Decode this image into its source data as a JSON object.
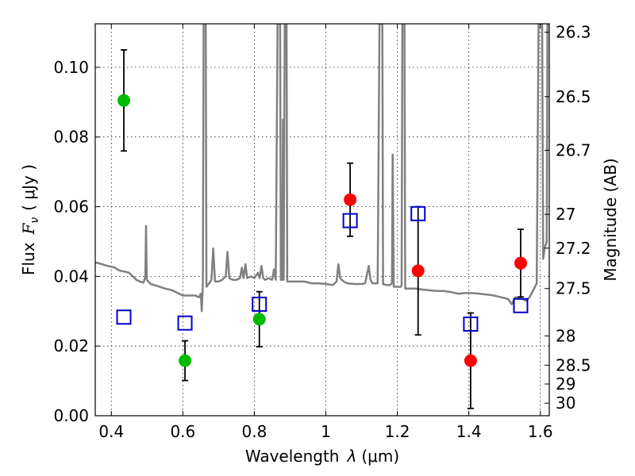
{
  "chart_data": {
    "type": "scatter",
    "title": "",
    "xlabel": "Wavelength",
    "xlabel_symbol": "λ",
    "xlabel_unit": "(μm)",
    "ylabel_parts": [
      "Flux",
      "F",
      "ν",
      "( μJy )"
    ],
    "y2label": "Magnitude (AB)",
    "xlim": [
      0.355,
      1.625
    ],
    "ylim": [
      0.0,
      0.1125
    ],
    "x_ticks": [
      0.4,
      0.6,
      0.8,
      1.0,
      1.2,
      1.4,
      1.6
    ],
    "x_tick_labels": [
      "0.4",
      "0.6",
      "0.8",
      "1",
      "1.2",
      "1.4",
      "1.6"
    ],
    "y_ticks": [
      0.0,
      0.02,
      0.04,
      0.06,
      0.08,
      0.1
    ],
    "y_tick_labels": [
      "0.00",
      "0.02",
      "0.04",
      "0.06",
      "0.08",
      "0.10"
    ],
    "y2_ticks": [
      {
        "label": "26.3",
        "flux": 0.1101
      },
      {
        "label": "26.5",
        "flux": 0.0916
      },
      {
        "label": "26.7",
        "flux": 0.0762
      },
      {
        "label": "27",
        "flux": 0.0578
      },
      {
        "label": "27.2",
        "flux": 0.0481
      },
      {
        "label": "27.5",
        "flux": 0.0365
      },
      {
        "label": "28",
        "flux": 0.0229
      },
      {
        "label": "28.5",
        "flux": 0.0145
      },
      {
        "label": "29",
        "flux": 0.0091
      },
      {
        "label": "30",
        "flux": 0.0036
      }
    ],
    "grid": true,
    "series": [
      {
        "kind": "line",
        "color": "#808080",
        "points": [
          [
            0.355,
            0.044
          ],
          [
            0.37,
            0.0436
          ],
          [
            0.385,
            0.0431
          ],
          [
            0.4,
            0.0428
          ],
          [
            0.41,
            0.0425
          ],
          [
            0.42,
            0.0418
          ],
          [
            0.43,
            0.0415
          ],
          [
            0.44,
            0.0413
          ],
          [
            0.45,
            0.041
          ],
          [
            0.46,
            0.04
          ],
          [
            0.47,
            0.039
          ],
          [
            0.48,
            0.0385
          ],
          [
            0.49,
            0.0382
          ],
          [
            0.495,
            0.04
          ],
          [
            0.497,
            0.0545
          ],
          [
            0.499,
            0.039
          ],
          [
            0.51,
            0.0378
          ],
          [
            0.53,
            0.0372
          ],
          [
            0.55,
            0.0365
          ],
          [
            0.57,
            0.036
          ],
          [
            0.59,
            0.035
          ],
          [
            0.6,
            0.0345
          ],
          [
            0.61,
            0.0345
          ],
          [
            0.62,
            0.0345
          ],
          [
            0.635,
            0.0345
          ],
          [
            0.645,
            0.034
          ],
          [
            0.65,
            0.035
          ],
          [
            0.653,
            0.03
          ],
          [
            0.656,
            0.038
          ],
          [
            0.658,
            0.1125
          ],
          [
            0.664,
            0.1125
          ],
          [
            0.666,
            0.037
          ],
          [
            0.67,
            0.0375
          ],
          [
            0.68,
            0.039
          ],
          [
            0.685,
            0.048
          ],
          [
            0.69,
            0.0385
          ],
          [
            0.7,
            0.0385
          ],
          [
            0.71,
            0.039
          ],
          [
            0.72,
            0.04
          ],
          [
            0.725,
            0.047
          ],
          [
            0.73,
            0.0395
          ],
          [
            0.74,
            0.039
          ],
          [
            0.75,
            0.039
          ],
          [
            0.76,
            0.0395
          ],
          [
            0.765,
            0.0425
          ],
          [
            0.77,
            0.0395
          ],
          [
            0.775,
            0.0435
          ],
          [
            0.78,
            0.0395
          ],
          [
            0.79,
            0.04
          ],
          [
            0.8,
            0.0395
          ],
          [
            0.81,
            0.041
          ],
          [
            0.815,
            0.0395
          ],
          [
            0.82,
            0.043
          ],
          [
            0.825,
            0.0395
          ],
          [
            0.83,
            0.039
          ],
          [
            0.84,
            0.0395
          ],
          [
            0.85,
            0.039
          ],
          [
            0.855,
            0.042
          ],
          [
            0.86,
            0.039
          ],
          [
            0.865,
            0.1125
          ],
          [
            0.872,
            0.1125
          ],
          [
            0.874,
            0.039
          ],
          [
            0.878,
            0.039
          ],
          [
            0.88,
            0.085
          ],
          [
            0.882,
            0.039
          ],
          [
            0.885,
            0.1125
          ],
          [
            0.89,
            0.1125
          ],
          [
            0.892,
            0.0385
          ],
          [
            0.9,
            0.0385
          ],
          [
            0.92,
            0.0385
          ],
          [
            0.94,
            0.0385
          ],
          [
            0.96,
            0.038
          ],
          [
            0.98,
            0.038
          ],
          [
            1.0,
            0.0378
          ],
          [
            1.02,
            0.0375
          ],
          [
            1.03,
            0.0385
          ],
          [
            1.035,
            0.0435
          ],
          [
            1.04,
            0.0395
          ],
          [
            1.05,
            0.0385
          ],
          [
            1.06,
            0.038
          ],
          [
            1.08,
            0.0378
          ],
          [
            1.1,
            0.0378
          ],
          [
            1.11,
            0.038
          ],
          [
            1.12,
            0.043
          ],
          [
            1.125,
            0.039
          ],
          [
            1.13,
            0.038
          ],
          [
            1.14,
            0.038
          ],
          [
            1.145,
            0.038
          ],
          [
            1.15,
            0.1125
          ],
          [
            1.158,
            0.1125
          ],
          [
            1.16,
            0.0378
          ],
          [
            1.17,
            0.0375
          ],
          [
            1.18,
            0.0375
          ],
          [
            1.185,
            0.038
          ],
          [
            1.187,
            0.075
          ],
          [
            1.19,
            0.037
          ],
          [
            1.2,
            0.037
          ],
          [
            1.21,
            0.037
          ],
          [
            1.212,
            0.0375
          ],
          [
            1.214,
            0.1125
          ],
          [
            1.22,
            0.1125
          ],
          [
            1.222,
            0.0365
          ],
          [
            1.23,
            0.0365
          ],
          [
            1.25,
            0.0365
          ],
          [
            1.27,
            0.0362
          ],
          [
            1.29,
            0.036
          ],
          [
            1.31,
            0.0358
          ],
          [
            1.33,
            0.0358
          ],
          [
            1.35,
            0.0355
          ],
          [
            1.37,
            0.035
          ],
          [
            1.39,
            0.0352
          ],
          [
            1.41,
            0.0352
          ],
          [
            1.43,
            0.035
          ],
          [
            1.45,
            0.0348
          ],
          [
            1.47,
            0.0345
          ],
          [
            1.49,
            0.034
          ],
          [
            1.51,
            0.0335
          ],
          [
            1.52,
            0.032
          ],
          [
            1.53,
            0.034
          ],
          [
            1.55,
            0.0335
          ],
          [
            1.56,
            0.033
          ],
          [
            1.57,
            0.034
          ],
          [
            1.58,
            0.036
          ],
          [
            1.59,
            0.038
          ],
          [
            1.595,
            0.1125
          ],
          [
            1.605,
            0.1125
          ],
          [
            1.608,
            0.045
          ],
          [
            1.612,
            0.048
          ],
          [
            1.618,
            0.05
          ],
          [
            1.62,
            0.1125
          ],
          [
            1.625,
            0.1125
          ]
        ]
      },
      {
        "kind": "points",
        "marker": "circle",
        "color": "#00bb00",
        "points": [
          {
            "x": 0.435,
            "y": 0.0905,
            "err": 0.0145
          },
          {
            "x": 0.606,
            "y": 0.0158,
            "err": 0.0057
          },
          {
            "x": 0.814,
            "y": 0.0277,
            "err": 0.0079
          }
        ]
      },
      {
        "kind": "points",
        "marker": "circle",
        "color": "#ff0000",
        "points": [
          {
            "x": 1.068,
            "y": 0.062,
            "err": 0.0105
          },
          {
            "x": 1.258,
            "y": 0.0416,
            "err": 0.0184
          },
          {
            "x": 1.405,
            "y": 0.0158,
            "err": 0.0137
          },
          {
            "x": 1.545,
            "y": 0.0438,
            "err": 0.0097
          }
        ]
      },
      {
        "kind": "points",
        "marker": "open-square",
        "color": "#0000cc",
        "points": [
          {
            "x": 0.435,
            "y": 0.0283
          },
          {
            "x": 0.606,
            "y": 0.0266
          },
          {
            "x": 0.814,
            "y": 0.032
          },
          {
            "x": 1.068,
            "y": 0.056
          },
          {
            "x": 1.258,
            "y": 0.058
          },
          {
            "x": 1.405,
            "y": 0.0263
          },
          {
            "x": 1.545,
            "y": 0.0316
          }
        ]
      }
    ]
  }
}
